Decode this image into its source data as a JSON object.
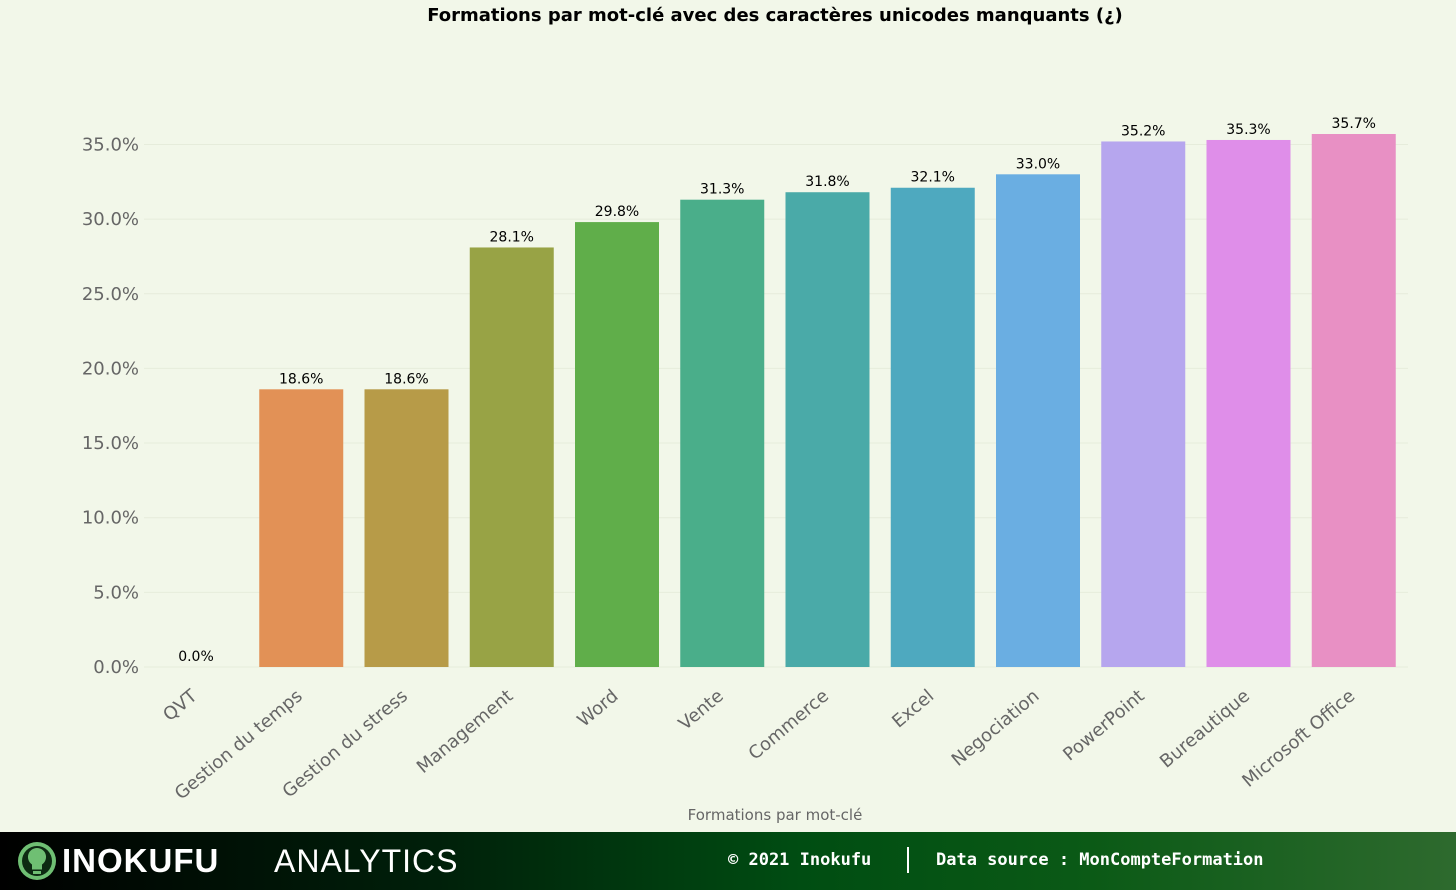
{
  "chart_data": {
    "type": "bar",
    "title": "Formations par mot-clé avec des caractères unicodes manquants (¿)",
    "xlabel": "Formations par mot-clé",
    "ylabel": "",
    "categories": [
      "QVT",
      "Gestion du temps",
      "Gestion du stress",
      "Management",
      "Word",
      "Vente",
      "Commerce",
      "Excel",
      "Negociation",
      "PowerPoint",
      "Bureautique",
      "Microsoft Office"
    ],
    "values": [
      0.0,
      18.6,
      18.6,
      28.1,
      29.8,
      31.3,
      31.8,
      32.1,
      33.0,
      35.2,
      35.3,
      35.7
    ],
    "value_labels": [
      "0.0%",
      "18.6%",
      "18.6%",
      "28.1%",
      "29.8%",
      "31.3%",
      "31.8%",
      "32.1%",
      "33.0%",
      "35.2%",
      "35.3%",
      "35.7%"
    ],
    "colors": [
      "#f07a8a",
      "#e29156",
      "#b79b48",
      "#98a345",
      "#60ae4a",
      "#4aae8a",
      "#4aaaa8",
      "#4ea9bf",
      "#6aaee2",
      "#b6a6ee",
      "#df8ee9",
      "#e890c4"
    ],
    "yticks": [
      "0.0%",
      "5.0%",
      "10.0%",
      "15.0%",
      "20.0%",
      "25.0%",
      "30.0%",
      "35.0%"
    ],
    "ylim": [
      0,
      40
    ],
    "grid": true,
    "legend": "none"
  },
  "footer": {
    "brand": "INOKUFU",
    "brand_sub": "ANALYTICS",
    "copyright": "© 2021 Inokufu",
    "source": "Data source : MonCompteFormation"
  }
}
